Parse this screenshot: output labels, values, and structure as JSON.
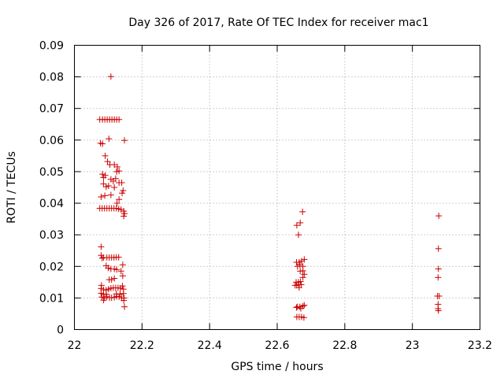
{
  "chart_data": {
    "type": "scatter",
    "title": "Day 326 of 2017, Rate Of TEC Index for receiver mac1",
    "xlabel": "GPS time / hours",
    "ylabel": "ROTI / TECUs",
    "xlim": [
      22,
      23.2
    ],
    "ylim": [
      0,
      0.09
    ],
    "xticks": [
      "22",
      "22.2",
      "22.4",
      "22.6",
      "22.8",
      "23",
      "23.2"
    ],
    "yticks": [
      "0",
      "0.01",
      "0.02",
      "0.03",
      "0.04",
      "0.05",
      "0.06",
      "0.07",
      "0.08",
      "0.09"
    ],
    "grid": true,
    "marker": "+",
    "color": "#cc0000",
    "series": [
      {
        "points": [
          [
            22.075,
            0.0665
          ],
          [
            22.083,
            0.0665
          ],
          [
            22.09,
            0.0665
          ],
          [
            22.097,
            0.0665
          ],
          [
            22.104,
            0.0665
          ],
          [
            22.111,
            0.0665
          ],
          [
            22.118,
            0.0665
          ],
          [
            22.125,
            0.0665
          ],
          [
            22.132,
            0.0665
          ],
          [
            22.108,
            0.0801
          ],
          [
            22.077,
            0.059
          ],
          [
            22.083,
            0.0588
          ],
          [
            22.102,
            0.0604
          ],
          [
            22.148,
            0.0599
          ],
          [
            22.091,
            0.055
          ],
          [
            22.098,
            0.0532
          ],
          [
            22.105,
            0.0522
          ],
          [
            22.118,
            0.0522
          ],
          [
            22.127,
            0.0515
          ],
          [
            22.132,
            0.0502
          ],
          [
            22.125,
            0.05
          ],
          [
            22.083,
            0.0492
          ],
          [
            22.086,
            0.0481
          ],
          [
            22.091,
            0.0488
          ],
          [
            22.108,
            0.0476
          ],
          [
            22.115,
            0.047
          ],
          [
            22.122,
            0.0478
          ],
          [
            22.086,
            0.0461
          ],
          [
            22.094,
            0.0452
          ],
          [
            22.101,
            0.0455
          ],
          [
            22.118,
            0.045
          ],
          [
            22.132,
            0.0465
          ],
          [
            22.14,
            0.0465
          ],
          [
            22.144,
            0.044
          ],
          [
            22.141,
            0.0432
          ],
          [
            22.09,
            0.0424
          ],
          [
            22.108,
            0.0426
          ],
          [
            22.079,
            0.042
          ],
          [
            22.132,
            0.0412
          ],
          [
            22.126,
            0.04
          ],
          [
            22.075,
            0.0384
          ],
          [
            22.082,
            0.0384
          ],
          [
            22.089,
            0.0384
          ],
          [
            22.096,
            0.0384
          ],
          [
            22.103,
            0.0384
          ],
          [
            22.11,
            0.0384
          ],
          [
            22.117,
            0.0384
          ],
          [
            22.124,
            0.0384
          ],
          [
            22.131,
            0.0382
          ],
          [
            22.138,
            0.038
          ],
          [
            22.146,
            0.0375
          ],
          [
            22.148,
            0.0367
          ],
          [
            22.146,
            0.0359
          ],
          [
            22.079,
            0.0262
          ],
          [
            22.079,
            0.0235
          ],
          [
            22.082,
            0.0226
          ],
          [
            22.086,
            0.0228
          ],
          [
            22.096,
            0.0228
          ],
          [
            22.103,
            0.0228
          ],
          [
            22.11,
            0.0228
          ],
          [
            22.117,
            0.0228
          ],
          [
            22.124,
            0.0229
          ],
          [
            22.131,
            0.0229
          ],
          [
            22.143,
            0.0205
          ],
          [
            22.094,
            0.0202
          ],
          [
            22.1,
            0.0195
          ],
          [
            22.108,
            0.0192
          ],
          [
            22.118,
            0.0192
          ],
          [
            22.125,
            0.019
          ],
          [
            22.138,
            0.0185
          ],
          [
            22.143,
            0.017
          ],
          [
            22.103,
            0.0158
          ],
          [
            22.11,
            0.0158
          ],
          [
            22.118,
            0.0162
          ],
          [
            22.08,
            0.014
          ],
          [
            22.142,
            0.0138
          ],
          [
            22.079,
            0.013
          ],
          [
            22.086,
            0.0126
          ],
          [
            22.094,
            0.0125
          ],
          [
            22.101,
            0.0128
          ],
          [
            22.108,
            0.0131
          ],
          [
            22.115,
            0.0132
          ],
          [
            22.122,
            0.0132
          ],
          [
            22.129,
            0.0132
          ],
          [
            22.136,
            0.0131
          ],
          [
            22.145,
            0.0128
          ],
          [
            22.079,
            0.0115
          ],
          [
            22.086,
            0.0112
          ],
          [
            22.094,
            0.0112
          ],
          [
            22.124,
            0.0113
          ],
          [
            22.135,
            0.0112
          ],
          [
            22.145,
            0.0114
          ],
          [
            22.081,
            0.0103
          ],
          [
            22.089,
            0.01
          ],
          [
            22.096,
            0.0104
          ],
          [
            22.104,
            0.0101
          ],
          [
            22.11,
            0.0101
          ],
          [
            22.118,
            0.0102
          ],
          [
            22.125,
            0.0105
          ],
          [
            22.132,
            0.0104
          ],
          [
            22.14,
            0.01
          ],
          [
            22.147,
            0.01
          ],
          [
            22.086,
            0.0093
          ],
          [
            22.146,
            0.0092
          ],
          [
            22.148,
            0.0072
          ],
          [
            22.675,
            0.0373
          ],
          [
            22.658,
            0.033
          ],
          [
            22.668,
            0.0338
          ],
          [
            22.663,
            0.03
          ],
          [
            22.657,
            0.0213
          ],
          [
            22.665,
            0.0213
          ],
          [
            22.672,
            0.0217
          ],
          [
            22.68,
            0.0222
          ],
          [
            22.66,
            0.02
          ],
          [
            22.667,
            0.0205
          ],
          [
            22.676,
            0.02
          ],
          [
            22.668,
            0.0185
          ],
          [
            22.676,
            0.0186
          ],
          [
            22.68,
            0.0175
          ],
          [
            22.676,
            0.0165
          ],
          [
            22.656,
            0.015
          ],
          [
            22.663,
            0.015
          ],
          [
            22.669,
            0.0152
          ],
          [
            22.653,
            0.014
          ],
          [
            22.658,
            0.014
          ],
          [
            22.664,
            0.0142
          ],
          [
            22.671,
            0.0142
          ],
          [
            22.665,
            0.0133
          ],
          [
            22.66,
            0.0072
          ],
          [
            22.667,
            0.0072
          ],
          [
            22.676,
            0.0074
          ],
          [
            22.68,
            0.0077
          ],
          [
            22.657,
            0.007
          ],
          [
            22.67,
            0.0067
          ],
          [
            22.658,
            0.004
          ],
          [
            22.665,
            0.004
          ],
          [
            22.672,
            0.004
          ],
          [
            22.679,
            0.0038
          ],
          [
            23.078,
            0.036
          ],
          [
            23.077,
            0.0256
          ],
          [
            23.077,
            0.0192
          ],
          [
            23.076,
            0.0165
          ],
          [
            23.074,
            0.0106
          ],
          [
            23.079,
            0.0106
          ],
          [
            23.076,
            0.008
          ],
          [
            23.076,
            0.0066
          ],
          [
            23.077,
            0.006
          ]
        ]
      }
    ]
  }
}
